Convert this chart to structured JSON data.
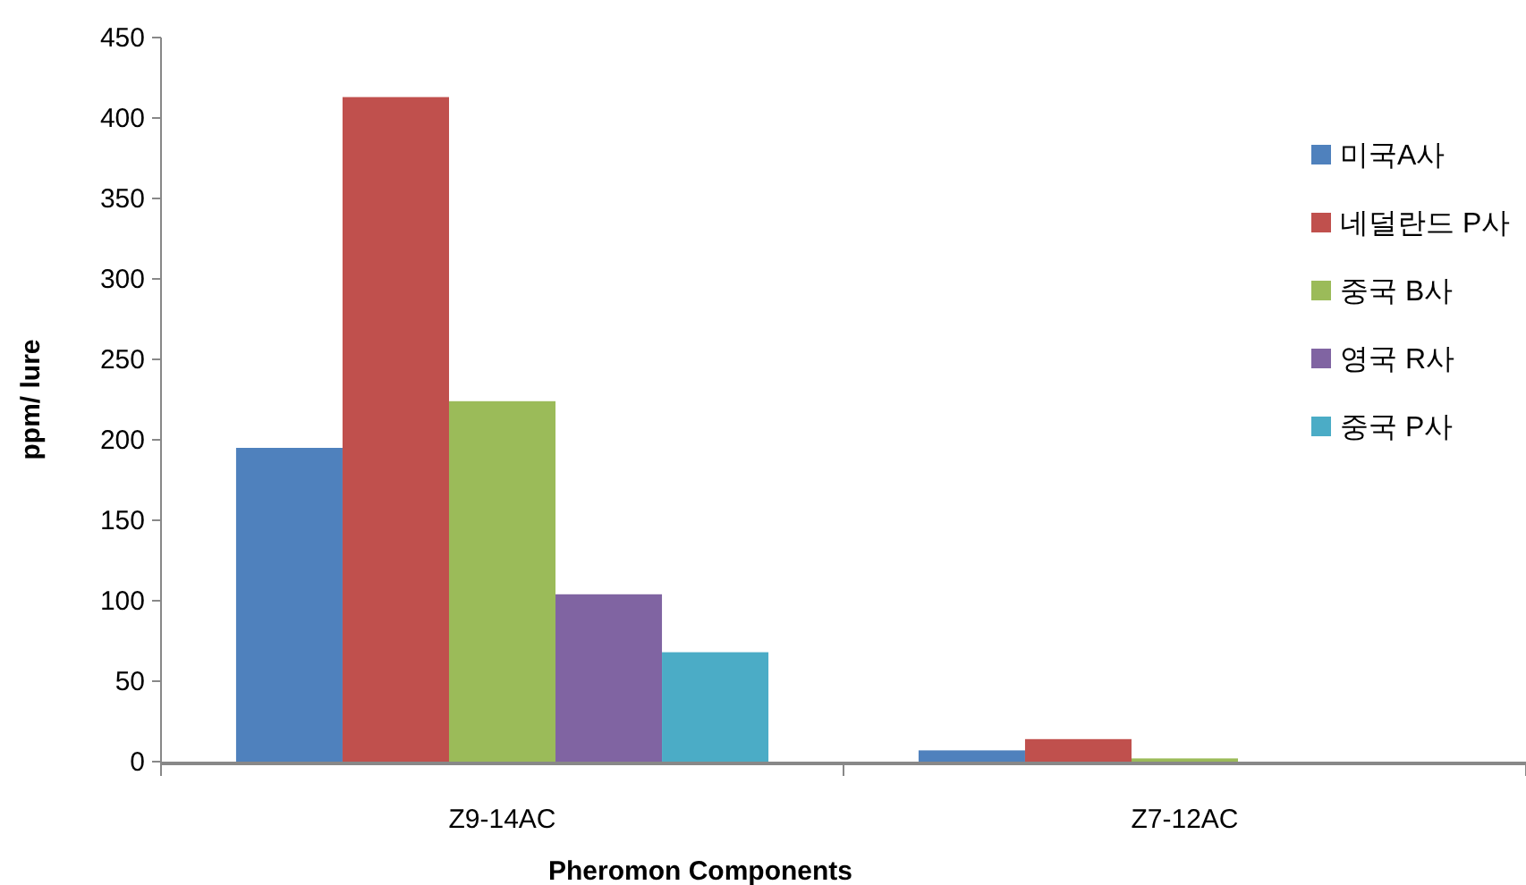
{
  "chart_data": {
    "type": "bar",
    "xlabel": "Pheromon Components",
    "ylabel": "ppm/ lure",
    "categories": [
      "Z9-14AC",
      "Z7-12AC"
    ],
    "series": [
      {
        "name": "미국A사",
        "color": "#4f81bd",
        "values": [
          195,
          7
        ]
      },
      {
        "name": "네덜란드 P사",
        "color": "#c0504d",
        "values": [
          413,
          14
        ]
      },
      {
        "name": "중국 B사",
        "color": "#9bbb59",
        "values": [
          224,
          2
        ]
      },
      {
        "name": "영국 R사",
        "color": "#8064a2",
        "values": [
          104,
          0
        ]
      },
      {
        "name": "중국 P사",
        "color": "#4bacc6",
        "values": [
          68,
          0
        ]
      }
    ],
    "ylim": [
      0,
      450
    ],
    "yticks": [
      0,
      50,
      100,
      150,
      200,
      250,
      300,
      350,
      400,
      450
    ],
    "grid": false,
    "legend": "right"
  }
}
